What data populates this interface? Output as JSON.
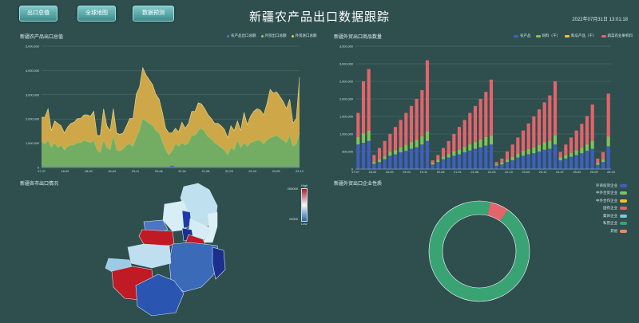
{
  "nav": {
    "buttons": [
      {
        "label": "出口总值"
      },
      {
        "label": "全球地图"
      },
      {
        "label": "数据预测"
      }
    ]
  },
  "header": {
    "title": "新疆农产品出口数据跟踪",
    "timestamp": "2022年07月31日 13:01:18"
  },
  "panels": {
    "area_title": "新疆农产品出口总值",
    "bar_title": "新疆外贸出口商品数量",
    "map_title": "新疆各市出口情况",
    "donut_title": "新疆外贸出口企业性质"
  },
  "area_legend": [
    {
      "name": "农产品出口总额",
      "color": "#5470c6"
    },
    {
      "name": "外贸出口总额",
      "color": "#91cc75"
    },
    {
      "name": "外贸进口总额",
      "color": "#e8c44b"
    }
  ],
  "bar_legend": [
    {
      "name": "农产品",
      "color": "#3f5fbf"
    },
    {
      "name": "饲料（干）",
      "color": "#7cc35a"
    },
    {
      "name": "鲜瓜产品（干）",
      "color": "#f0c22e"
    },
    {
      "name": "蔬菜农业果机料",
      "color": "#e3646a"
    }
  ],
  "map_scale": {
    "high": "High",
    "max": "200000",
    "min": "10000",
    "low": "Low"
  },
  "donut_legend": [
    {
      "name": "外商投资企业",
      "color": "#3f5fbf"
    },
    {
      "name": "中外合资企业",
      "color": "#7cc35a"
    },
    {
      "name": "中外合作企业",
      "color": "#f0c22e"
    },
    {
      "name": "国有企业",
      "color": "#e3646a"
    },
    {
      "name": "集体企业",
      "color": "#79c7e3"
    },
    {
      "name": "私营企业",
      "color": "#3aa374"
    },
    {
      "name": "其他",
      "color": "#f08a5d"
    }
  ],
  "chart_data": [
    {
      "type": "area",
      "title": "新疆农产品出口总值",
      "stacked": true,
      "ylim": [
        0,
        5000000
      ],
      "yticks": [
        "0",
        "1,000,000",
        "2,000,000",
        "3,000,000",
        "4,000,000",
        "5,000,000"
      ],
      "x_tick_labels": [
        "17-07",
        "18-02",
        "18-09",
        "19-04",
        "19-11",
        "20-06",
        "21-01",
        "21-08",
        "22-03",
        "22-10",
        "23-05",
        "23-12"
      ],
      "grid": true,
      "legend": "top-right",
      "series": [
        {
          "name": "农产品出口总额",
          "values": [
            20000,
            20000,
            20000,
            20000,
            20000,
            20000,
            20000,
            20000,
            20000,
            20000,
            20000,
            20000,
            20000,
            20000,
            20000,
            20000,
            20000,
            20000,
            20000,
            20000,
            20000,
            20000,
            20000,
            20000,
            20000,
            20000,
            20000,
            20000,
            20000,
            20000,
            20000,
            20000,
            20000,
            20000,
            20000,
            20000,
            20000,
            20000,
            20000,
            20000,
            80000,
            20000,
            20000,
            20000,
            20000,
            20000,
            20000,
            20000,
            20000,
            20000,
            20000,
            20000,
            20000,
            20000,
            20000,
            20000,
            20000,
            20000,
            20000,
            20000,
            20000,
            20000,
            20000,
            20000,
            20000,
            20000,
            20000,
            20000,
            20000,
            20000,
            20000,
            20000,
            20000,
            20000,
            20000,
            20000,
            20000,
            20000,
            20000,
            20000
          ]
        },
        {
          "name": "外贸出口总额",
          "values": [
            1050000,
            950000,
            1100000,
            800000,
            1000000,
            800000,
            900000,
            700000,
            850000,
            900000,
            900000,
            1000000,
            1000000,
            1100000,
            1050000,
            1000000,
            1100000,
            700000,
            600000,
            1100000,
            800000,
            700000,
            1300000,
            700000,
            650000,
            750000,
            900000,
            950000,
            850000,
            1200000,
            1500000,
            2000000,
            1900000,
            1800000,
            1700000,
            1500000,
            1400000,
            1050000,
            700000,
            500000,
            600000,
            950000,
            850000,
            1000000,
            900000,
            1000000,
            1300000,
            1300000,
            1500000,
            1600000,
            1450000,
            1250000,
            1150000,
            1000000,
            900000,
            800000,
            700000,
            500000,
            800000,
            700000,
            1100000,
            800000,
            1000000,
            850000,
            1000000,
            1050000,
            1100000,
            1100000,
            950000,
            1100000,
            1200000,
            1250000,
            1300000,
            1200000,
            1100000,
            1000000,
            1300000,
            850000,
            950000,
            1400000
          ]
        },
        {
          "name": "外贸进口总额",
          "values": [
            1000000,
            1100000,
            1300000,
            700000,
            900000,
            1000000,
            800000,
            700000,
            800000,
            900000,
            950000,
            1000000,
            1000000,
            1050000,
            1100000,
            1100000,
            1200000,
            600000,
            700000,
            1300000,
            900000,
            800000,
            1100000,
            700000,
            700000,
            650000,
            800000,
            1050000,
            1150000,
            1800000,
            1800000,
            2100000,
            1900000,
            1800000,
            1700000,
            1500000,
            1400000,
            1200000,
            900000,
            900000,
            750000,
            650000,
            600000,
            850000,
            700000,
            800000,
            1000000,
            1000000,
            1150000,
            1000000,
            950000,
            900000,
            850000,
            800000,
            900000,
            900000,
            850000,
            700000,
            900000,
            800000,
            800000,
            700000,
            1250000,
            900000,
            1100000,
            1250000,
            1300000,
            1250000,
            1200000,
            1500000,
            2000000,
            1800000,
            1800000,
            1700000,
            1600000,
            1400000,
            1500000,
            950000,
            1050000,
            2300000
          ]
        }
      ]
    },
    {
      "type": "bar",
      "title": "新疆外贸出口商品数量",
      "stacked": true,
      "ylim": [
        0,
        3500000
      ],
      "yticks": [
        "0",
        "500,000",
        "1,000,000",
        "1,500,000",
        "2,000,000",
        "2,500,000",
        "3,000,000",
        "3,500,000"
      ],
      "x_tick_labels": [
        "17-07",
        "18-02",
        "18-09",
        "19-04",
        "19-11",
        "20-06",
        "21-01",
        "21-08",
        "22-03",
        "22-10",
        "23-05",
        "23-12",
        "24-07",
        "25-02",
        "25-09",
        "26-04"
      ],
      "grid": true,
      "legend": "top-right",
      "series": [
        {
          "name": "农产品",
          "values": [
            700000,
            750000,
            800000,
            150000,
            200000,
            280000,
            380000,
            420000,
            480000,
            520000,
            580000,
            620000,
            700000,
            800000,
            130000,
            200000,
            280000,
            330000,
            380000,
            420000,
            480000,
            530000,
            580000,
            620000,
            670000,
            700000,
            100000,
            130000,
            200000,
            250000,
            330000,
            380000,
            420000,
            450000,
            500000,
            550000,
            580000,
            700000,
            250000,
            300000,
            350000,
            400000,
            450000,
            520000,
            580000,
            120000,
            200000,
            650000
          ]
        },
        {
          "name": "饲料（干）",
          "values": [
            200000,
            250000,
            280000,
            50000,
            60000,
            80000,
            100000,
            120000,
            140000,
            160000,
            180000,
            200000,
            220000,
            260000,
            30000,
            50000,
            70000,
            90000,
            110000,
            130000,
            150000,
            170000,
            190000,
            210000,
            230000,
            250000,
            30000,
            40000,
            60000,
            80000,
            100000,
            120000,
            140000,
            160000,
            180000,
            200000,
            220000,
            260000,
            70000,
            90000,
            110000,
            130000,
            150000,
            180000,
            220000,
            40000,
            70000,
            260000
          ]
        },
        {
          "name": "鲜瓜产品（干）",
          "values": [
            10000,
            10000,
            10000,
            10000,
            10000,
            10000,
            10000,
            10000,
            10000,
            10000,
            10000,
            10000,
            10000,
            10000,
            10000,
            10000,
            10000,
            10000,
            10000,
            10000,
            10000,
            10000,
            10000,
            10000,
            10000,
            10000,
            10000,
            10000,
            10000,
            10000,
            10000,
            10000,
            10000,
            10000,
            10000,
            10000,
            10000,
            10000,
            10000,
            10000,
            10000,
            10000,
            10000,
            10000,
            10000,
            10000,
            10000,
            10000
          ]
        },
        {
          "name": "蔬菜农业果机料",
          "values": [
            690000,
            1490000,
            1760000,
            190000,
            330000,
            430000,
            510000,
            650000,
            770000,
            910000,
            1030000,
            1170000,
            1320000,
            2030000,
            80000,
            140000,
            240000,
            370000,
            500000,
            640000,
            760000,
            890000,
            1020000,
            1160000,
            1290000,
            1590000,
            60000,
            120000,
            230000,
            360000,
            460000,
            590000,
            730000,
            880000,
            1010000,
            1140000,
            1290000,
            1530000,
            150000,
            300000,
            430000,
            560000,
            680000,
            800000,
            1030000,
            130000,
            200000,
            1230000
          ]
        }
      ]
    },
    {
      "type": "pie",
      "title": "新疆外贸出口企业性质",
      "donut": true,
      "legend": "right",
      "slices": [
        {
          "name": "私营企业",
          "value": 94
        },
        {
          "name": "国有企业",
          "value": 6
        }
      ]
    }
  ]
}
